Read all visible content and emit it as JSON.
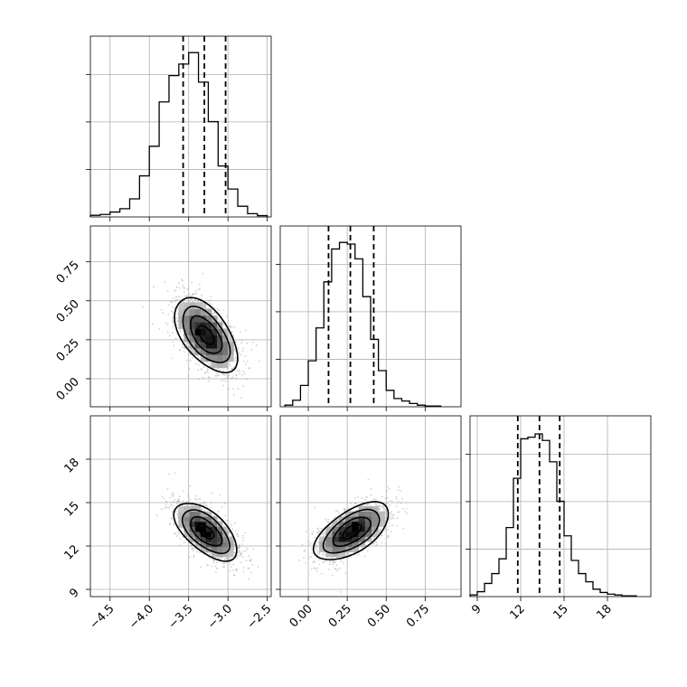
{
  "chart_data": {
    "type": "corner",
    "grid": true,
    "params": [
      {
        "range": [
          -4.75,
          -2.45
        ],
        "ticks": [
          -4.5,
          -4.0,
          -3.5,
          -3.0,
          -2.5
        ],
        "tick_labels": [
          "−4.5",
          "−4.0",
          "−3.5",
          "−3.0",
          "−2.5"
        ],
        "quantiles": [
          -3.57,
          -3.3,
          -3.03
        ],
        "hist_bins": [
          -4.75,
          -4.625,
          -4.5,
          -4.375,
          -4.25,
          -4.125,
          -4.0,
          -3.875,
          -3.75,
          -3.625,
          -3.5,
          -3.375,
          -3.25,
          -3.125,
          -3.0,
          -2.875,
          -2.75,
          -2.625,
          -2.5
        ],
        "hist_counts": [
          0.01,
          0.015,
          0.03,
          0.05,
          0.11,
          0.25,
          0.43,
          0.7,
          0.86,
          0.93,
          1.0,
          0.82,
          0.58,
          0.31,
          0.17,
          0.065,
          0.02,
          0.008
        ]
      },
      {
        "range": [
          -0.18,
          0.98
        ],
        "ticks": [
          0.0,
          0.25,
          0.5,
          0.75
        ],
        "tick_labels": [
          "0.00",
          "0.25",
          "0.50",
          "0.75"
        ],
        "quantiles": [
          0.13,
          0.27,
          0.42
        ],
        "hist_bins": [
          -0.15,
          -0.1,
          -0.05,
          0.0,
          0.05,
          0.1,
          0.15,
          0.2,
          0.25,
          0.3,
          0.35,
          0.4,
          0.45,
          0.5,
          0.55,
          0.6,
          0.65,
          0.7,
          0.75,
          0.8,
          0.85
        ],
        "hist_counts": [
          0.01,
          0.04,
          0.13,
          0.28,
          0.48,
          0.76,
          0.96,
          1.0,
          0.99,
          0.9,
          0.67,
          0.41,
          0.22,
          0.1,
          0.05,
          0.035,
          0.02,
          0.01,
          0.005,
          0.005
        ]
      },
      {
        "range": [
          8.5,
          21.0
        ],
        "ticks": [
          9,
          12,
          15,
          18
        ],
        "tick_labels": [
          "9",
          "12",
          "15",
          "18"
        ],
        "quantiles": [
          11.8,
          13.3,
          14.7
        ],
        "hist_bins": [
          8.5,
          9.0,
          9.5,
          10.0,
          10.5,
          11.0,
          11.5,
          12.0,
          12.5,
          13.0,
          13.5,
          14.0,
          14.5,
          15.0,
          15.5,
          16.0,
          16.5,
          17.0,
          17.5,
          18.0,
          18.5,
          19.0,
          19.5,
          20.0
        ],
        "hist_counts": [
          0.01,
          0.03,
          0.08,
          0.14,
          0.23,
          0.42,
          0.72,
          0.96,
          0.97,
          0.99,
          0.95,
          0.82,
          0.58,
          0.37,
          0.22,
          0.14,
          0.09,
          0.045,
          0.025,
          0.015,
          0.01,
          0.005,
          0.005
        ]
      }
    ],
    "pairs": [
      {
        "row": 1,
        "col": 0,
        "center": [
          -3.28,
          0.28
        ],
        "sd": [
          0.2,
          0.12
        ],
        "corr": -0.55,
        "contour_levels_sigma": [
          0.5,
          1.0,
          1.5,
          2.0
        ]
      },
      {
        "row": 2,
        "col": 0,
        "center": [
          -3.28,
          13.0
        ],
        "sd": [
          0.2,
          1.0
        ],
        "corr": -0.6,
        "contour_levels_sigma": [
          0.5,
          1.0,
          1.5,
          2.0
        ]
      },
      {
        "row": 2,
        "col": 1,
        "center": [
          0.28,
          13.0
        ],
        "sd": [
          0.12,
          1.0
        ],
        "corr": 0.6,
        "contour_levels_sigma": [
          0.5,
          1.0,
          1.5,
          2.0
        ]
      }
    ]
  }
}
